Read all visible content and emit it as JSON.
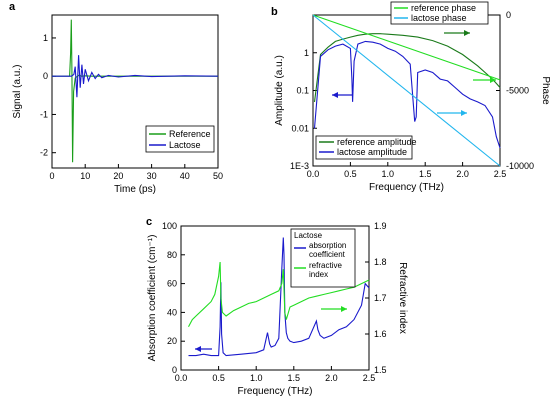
{
  "chart_data": [
    {
      "panel": "a",
      "type": "line",
      "xlabel": "Time (ps)",
      "ylabel": "Signal (a.u.)",
      "xlim": [
        0,
        50
      ],
      "ylim": [
        -2.4,
        1.6
      ],
      "xticks": [
        0,
        10,
        20,
        30,
        40,
        50
      ],
      "yticks": [
        -2,
        -1,
        0,
        1
      ],
      "legend_position": "lower-right",
      "series": [
        {
          "name": "Reference",
          "color": "#1a9e1a",
          "x": [
            0,
            5.3,
            5.6,
            5.8,
            6.0,
            6.2,
            6.5,
            7,
            8,
            9,
            10,
            12,
            15,
            20,
            30,
            40,
            50
          ],
          "y": [
            0,
            0,
            0.6,
            1.48,
            0.2,
            -2.25,
            -0.4,
            -0.05,
            0.02,
            0,
            0.01,
            0,
            0,
            0,
            0,
            0,
            0
          ]
        },
        {
          "name": "Lactose",
          "color": "#1a1acc",
          "x": [
            0,
            5.8,
            6.2,
            6.6,
            7.0,
            7.5,
            8.0,
            8.5,
            9.0,
            9.5,
            10,
            11,
            12,
            13,
            14,
            15,
            17,
            20,
            25,
            30,
            40,
            50
          ],
          "y": [
            0,
            0,
            0.02,
            0.05,
            0.25,
            -0.55,
            0.55,
            -0.3,
            0.3,
            -0.2,
            0.18,
            -0.12,
            0.1,
            -0.06,
            0.05,
            -0.04,
            0.02,
            -0.02,
            0.02,
            -0.01,
            0.01,
            0
          ]
        }
      ]
    },
    {
      "panel": "b",
      "type": "line",
      "xlabel": "Frequency (THz)",
      "ylabel": "Amplitude (a.u.)",
      "y2label": "Phase",
      "xlim": [
        0,
        2.5
      ],
      "ylim_log": [
        0.001,
        10
      ],
      "y2lim": [
        -10000,
        0
      ],
      "xticks": [
        0.0,
        0.5,
        1.0,
        1.5,
        2.0,
        2.5
      ],
      "ytick_labels": [
        "1E-3",
        "0.01",
        "0.1",
        "1"
      ],
      "y2ticks": [
        0,
        -5000,
        -10000
      ],
      "yscale": "log",
      "series": [
        {
          "name": "reference amplitude",
          "color": "#1a7a1a",
          "axis": "left",
          "x": [
            0.02,
            0.1,
            0.2,
            0.3,
            0.4,
            0.5,
            0.6,
            0.7,
            0.8,
            0.9,
            1.0,
            1.2,
            1.4,
            1.6,
            1.8,
            2.0,
            2.2,
            2.4,
            2.5
          ],
          "y": [
            0.05,
            0.9,
            1.4,
            2.0,
            2.3,
            2.6,
            2.9,
            3.1,
            3.2,
            3.2,
            3.1,
            2.9,
            2.6,
            2.1,
            1.5,
            0.9,
            0.45,
            0.2,
            0.12
          ]
        },
        {
          "name": "lactose amplitude",
          "color": "#1a1acc",
          "axis": "left",
          "x": [
            0.02,
            0.1,
            0.2,
            0.3,
            0.4,
            0.5,
            0.52,
            0.53,
            0.55,
            0.6,
            0.7,
            0.8,
            0.9,
            1.0,
            1.1,
            1.2,
            1.3,
            1.36,
            1.38,
            1.4,
            1.5,
            1.6,
            1.7,
            1.8,
            1.9,
            2.0,
            2.1,
            2.2,
            2.3,
            2.4,
            2.45,
            2.5
          ],
          "y": [
            0.01,
            0.8,
            1.2,
            1.5,
            1.7,
            1.3,
            0.2,
            0.05,
            0.6,
            1.7,
            2.0,
            1.9,
            1.7,
            1.3,
            1.1,
            0.8,
            0.5,
            0.015,
            0.02,
            0.3,
            0.35,
            0.3,
            0.2,
            0.18,
            0.12,
            0.08,
            0.06,
            0.05,
            0.04,
            0.02,
            0.006,
            0.003
          ]
        },
        {
          "name": "reference phase",
          "color": "#22dd22",
          "axis": "right",
          "x": [
            0,
            2.5
          ],
          "y": [
            0,
            -4300
          ]
        },
        {
          "name": "lactose phase",
          "color": "#22b6ee",
          "axis": "right",
          "x": [
            0,
            2.5
          ],
          "y": [
            0,
            -10000
          ]
        }
      ]
    },
    {
      "panel": "c",
      "type": "line",
      "title": "Lactose",
      "xlabel": "Frequency (THz)",
      "ylabel": "Absorption coefficient (cm⁻¹)",
      "y2label": "Refractive index",
      "xlim": [
        0,
        2.5
      ],
      "ylim": [
        0,
        100
      ],
      "y2lim": [
        1.5,
        1.9
      ],
      "xticks": [
        0.0,
        0.5,
        1.0,
        1.5,
        2.0,
        2.5
      ],
      "yticks": [
        0,
        20,
        40,
        60,
        80,
        100
      ],
      "y2ticks": [
        1.5,
        1.6,
        1.7,
        1.8,
        1.9
      ],
      "series": [
        {
          "name": "absorption coefficient",
          "color": "#1a1acc",
          "axis": "left",
          "x": [
            0.1,
            0.2,
            0.3,
            0.4,
            0.5,
            0.52,
            0.53,
            0.54,
            0.56,
            0.6,
            0.8,
            1.0,
            1.1,
            1.15,
            1.18,
            1.2,
            1.25,
            1.3,
            1.34,
            1.36,
            1.37,
            1.38,
            1.4,
            1.42,
            1.45,
            1.5,
            1.6,
            1.7,
            1.8,
            1.82,
            1.85,
            1.9,
            2.0,
            2.1,
            2.2,
            2.3,
            2.4,
            2.45,
            2.5
          ],
          "y": [
            10,
            10,
            11,
            10,
            10,
            30,
            61,
            25,
            12,
            10,
            11,
            12,
            14,
            26,
            18,
            16,
            17,
            22,
            70,
            92,
            80,
            40,
            26,
            22,
            20,
            19,
            20,
            22,
            34,
            28,
            24,
            22,
            24,
            28,
            30,
            35,
            45,
            60,
            57
          ]
        },
        {
          "name": "refractive index",
          "color": "#22dd22",
          "axis": "right",
          "x": [
            0.1,
            0.15,
            0.2,
            0.3,
            0.4,
            0.45,
            0.5,
            0.52,
            0.53,
            0.55,
            0.6,
            0.7,
            0.8,
            0.9,
            1.0,
            1.1,
            1.2,
            1.3,
            1.34,
            1.36,
            1.38,
            1.4,
            1.45,
            1.5,
            1.6,
            1.7,
            1.8,
            1.9,
            2.0,
            2.1,
            2.2,
            2.3,
            2.4,
            2.5
          ],
          "y": [
            1.62,
            1.64,
            1.65,
            1.67,
            1.69,
            1.71,
            1.76,
            1.8,
            1.7,
            1.66,
            1.65,
            1.665,
            1.675,
            1.685,
            1.69,
            1.7,
            1.71,
            1.72,
            1.74,
            1.78,
            1.66,
            1.64,
            1.675,
            1.68,
            1.69,
            1.7,
            1.705,
            1.71,
            1.715,
            1.72,
            1.725,
            1.73,
            1.74,
            1.75
          ]
        }
      ]
    }
  ],
  "panel_labels": [
    "a",
    "b",
    "c"
  ]
}
